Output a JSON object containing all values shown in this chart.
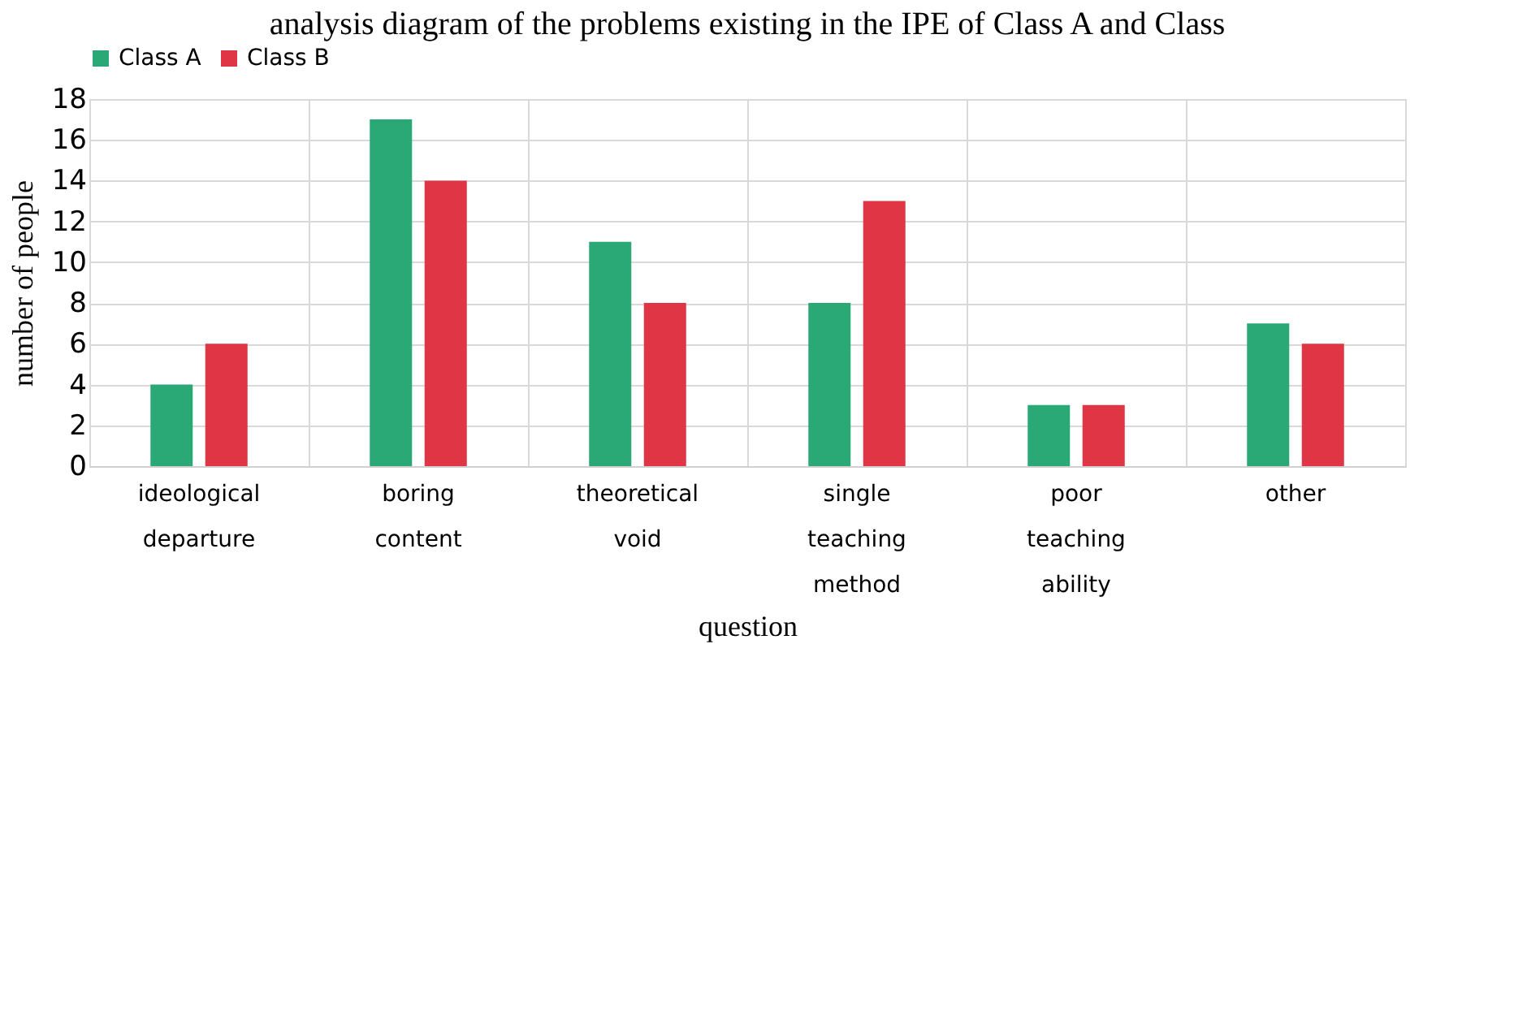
{
  "chart_data": {
    "type": "bar",
    "title": "analysis diagram of the problems existing in the IPE of Class A and Class",
    "xlabel": "question",
    "ylabel": "number of people",
    "categories": [
      "ideological departure",
      "boring content",
      "theoretical void",
      "single teaching method",
      "poor teaching ability",
      "other"
    ],
    "series": [
      {
        "name": "Class A",
        "color": "#2aa876",
        "values": [
          4,
          17,
          11,
          8,
          3,
          7
        ]
      },
      {
        "name": "Class B",
        "color": "#e03545",
        "values": [
          6,
          14,
          8,
          13,
          3,
          6
        ]
      }
    ],
    "ylim": [
      0,
      18
    ],
    "yticks": [
      0,
      2,
      4,
      6,
      8,
      10,
      12,
      14,
      16,
      18
    ],
    "grid": true,
    "legend": "top"
  }
}
